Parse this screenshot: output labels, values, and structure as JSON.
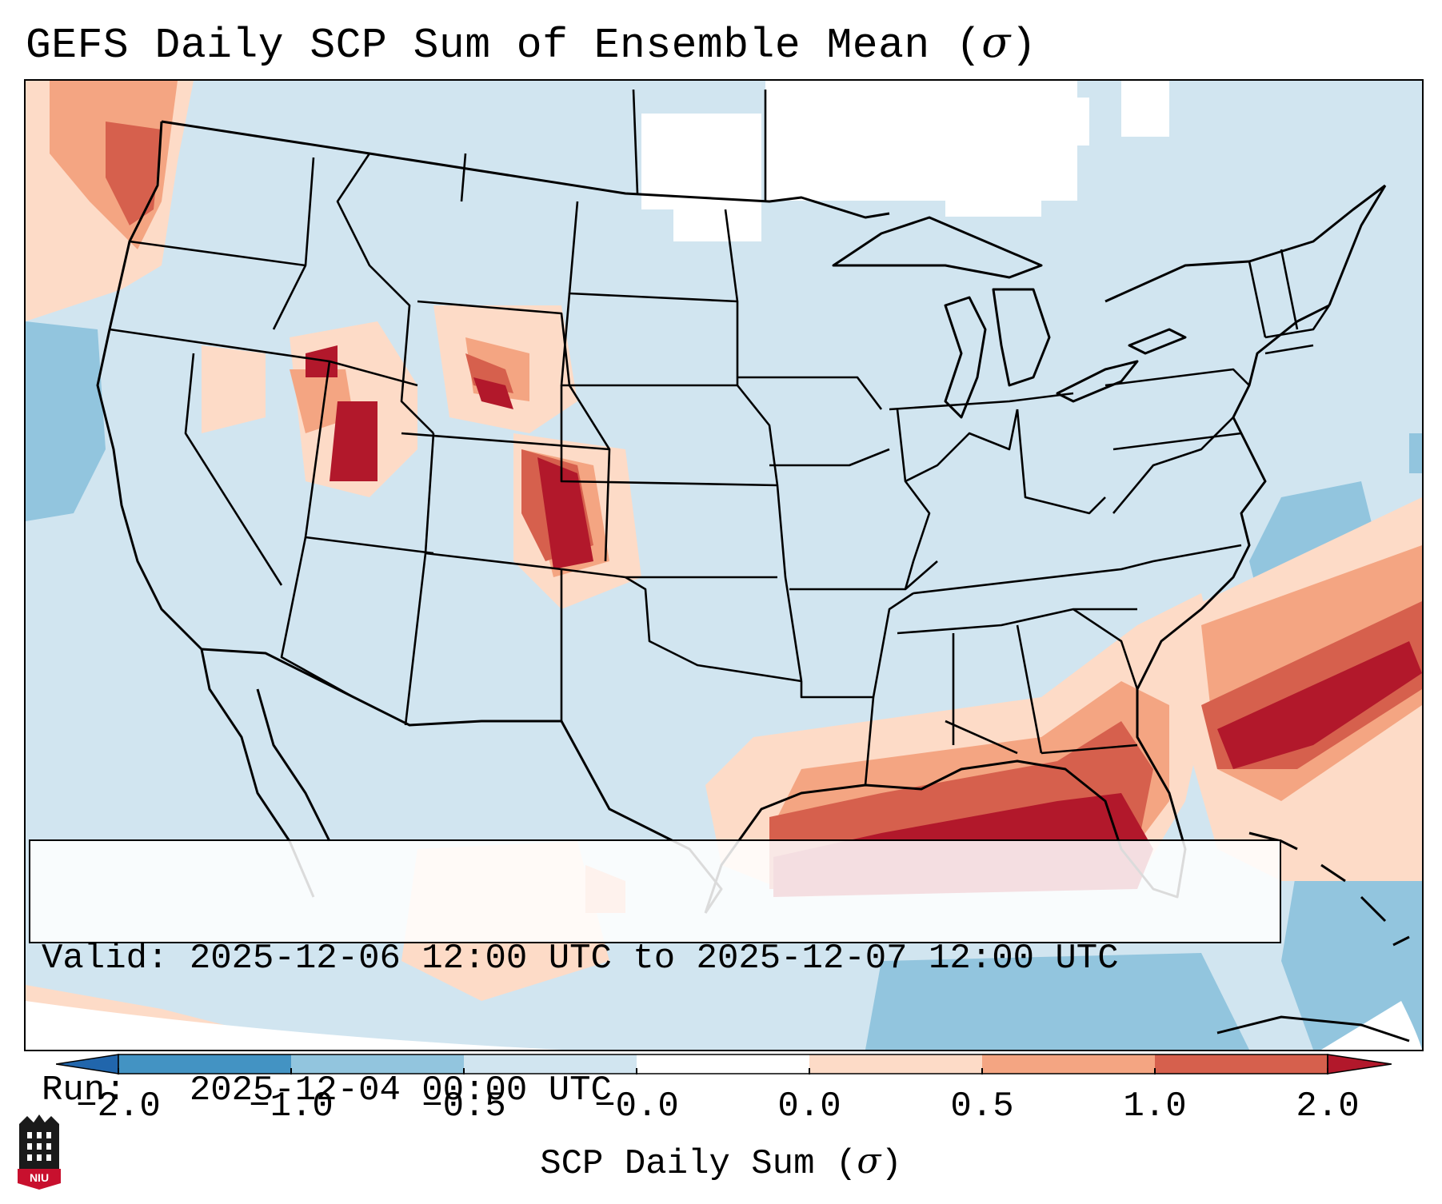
{
  "title": {
    "text": "GEFS Daily SCP Sum of Ensemble Mean (",
    "sigma": "σ",
    "close": ")"
  },
  "info": {
    "valid_line": "Valid: 2025-12-06 12:00 UTC to 2025-12-07 12:00 UTC",
    "run_line": "Run:   2025-12-04 00:00 UTC"
  },
  "colorbar": {
    "ticks": [
      "−2.0",
      "−1.0",
      "−0.5",
      "−0.0",
      "0.0",
      "0.5",
      "1.0",
      "2.0"
    ],
    "label_text": "SCP Daily Sum (",
    "label_sigma": "σ",
    "label_close": ")",
    "colors": {
      "under": "#2166ac",
      "bin_m2_m1": "#4393c3",
      "bin_m1_m05": "#92c5de",
      "bin_m05_0": "#d1e5f0",
      "bin_0_0": "#ffffff",
      "bin_0_05": "#fddbc7",
      "bin_05_1": "#f4a582",
      "bin_1_2": "#d6604d",
      "over": "#b2182b"
    }
  },
  "logo": {
    "text": "NIU",
    "color": "#c8102e"
  }
}
